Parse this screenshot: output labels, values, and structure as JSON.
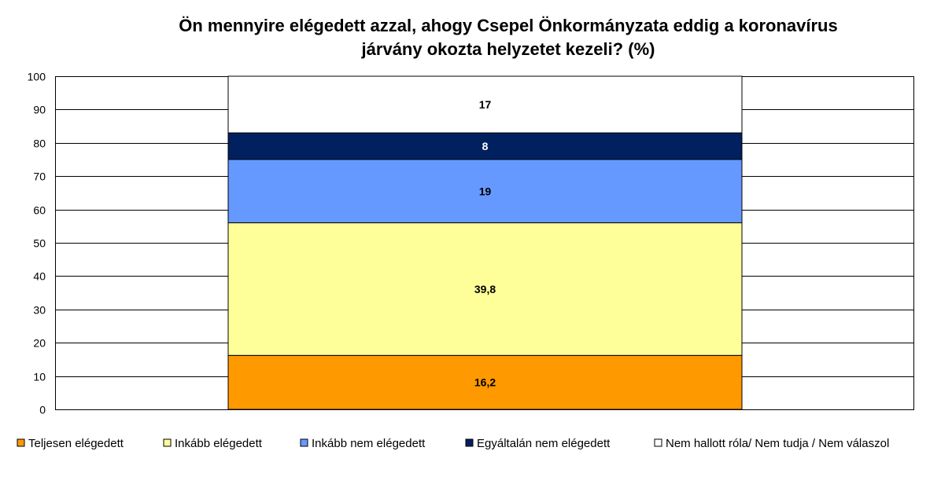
{
  "chart_data": {
    "type": "bar",
    "stacked": true,
    "title": "Ön mennyire elégedett azzal, ahogy Csepel Önkormányzata eddig a koronavírus járvány okozta helyzetet kezeli? (%)",
    "title_lines": [
      "Ön mennyire elégedett azzal, ahogy Csepel Önkormányzata eddig a koronavírus",
      "járvány okozta helyzetet kezeli? (%)"
    ],
    "categories": [
      ""
    ],
    "ylim": [
      0,
      100
    ],
    "yticks": [
      0,
      10,
      20,
      30,
      40,
      50,
      60,
      70,
      80,
      90,
      100
    ],
    "grid": true,
    "legend_position": "bottom",
    "series": [
      {
        "name": "Teljesen elégedett",
        "values": [
          16.2
        ],
        "label": "16,2",
        "color": "#FF9900",
        "label_color": "#000000"
      },
      {
        "name": "Inkább elégedett",
        "values": [
          39.8
        ],
        "label": "39,8",
        "color": "#FFFF99",
        "label_color": "#000000"
      },
      {
        "name": "Inkább nem elégedett",
        "values": [
          19
        ],
        "label": "19",
        "color": "#6699FF",
        "label_color": "#000000"
      },
      {
        "name": "Egyáltalán nem elégedett",
        "values": [
          8
        ],
        "label": "8",
        "color": "#002060",
        "label_color": "#FFFFFF"
      },
      {
        "name": "Nem hallott róla/ Nem tudja / Nem válaszol",
        "values": [
          17
        ],
        "label": "17",
        "color": "#FFFFFF",
        "label_color": "#000000"
      }
    ]
  }
}
